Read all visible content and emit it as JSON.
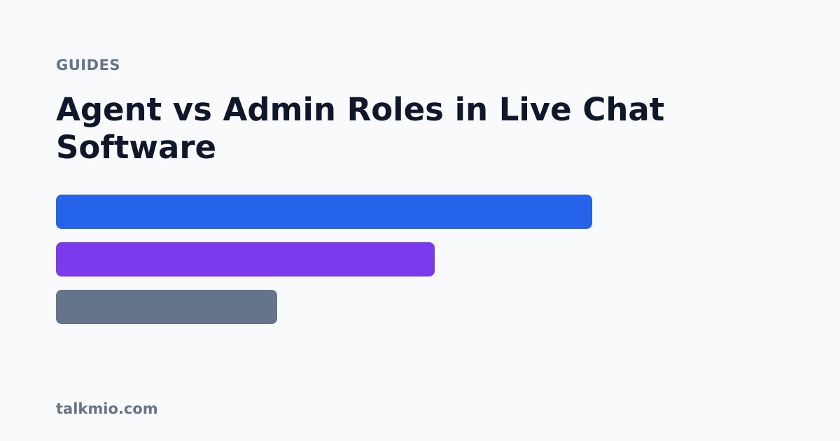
{
  "eyebrow": "GUIDES",
  "title": "Agent vs Admin Roles in Live Chat Software",
  "footer": "talkmio.com",
  "colors": {
    "background": "#f8fafc",
    "eyebrow": "#64748b",
    "title": "#0f172a",
    "footer": "#64748b"
  },
  "bars": [
    {
      "color": "#2563eb",
      "fraction": 0.7365
    },
    {
      "color": "#7c3aed",
      "fraction": 0.5202
    },
    {
      "color": "#64748b",
      "fraction": 0.3038
    }
  ]
}
